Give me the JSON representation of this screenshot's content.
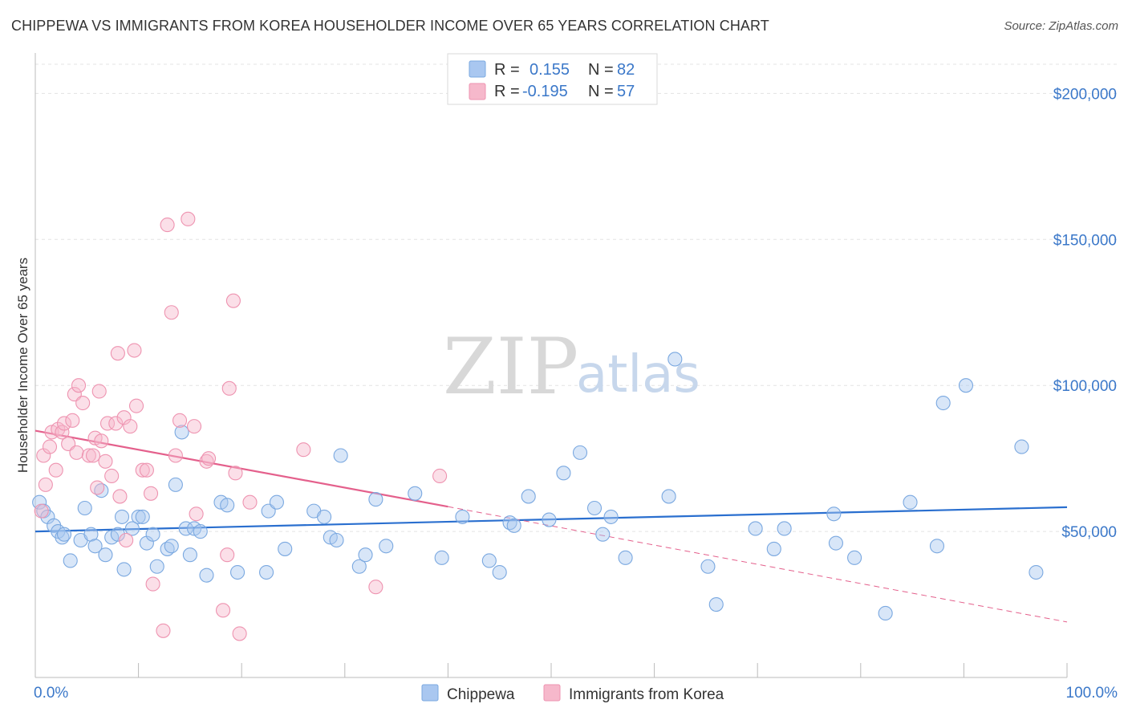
{
  "header": {
    "title": "CHIPPEWA VS IMMIGRANTS FROM KOREA HOUSEHOLDER INCOME OVER 65 YEARS CORRELATION CHART",
    "source": "Source: ZipAtlas.com"
  },
  "watermark": {
    "zip": "ZIP",
    "atlas": "atlas"
  },
  "legend": {
    "rows": [
      {
        "r_label": "R =",
        "r_value": "0.155",
        "n_label": "N =",
        "n_value": "82",
        "color": "#a9c7f0"
      },
      {
        "r_label": "R =",
        "r_value": "-0.195",
        "n_label": "N =",
        "n_value": "57",
        "color": "#f6b8cb"
      }
    ]
  },
  "bottom_legend": [
    {
      "label": "Chippewa",
      "color": "#a9c7f0"
    },
    {
      "label": "Immigrants from Korea",
      "color": "#f6b8cb"
    }
  ],
  "chart_data": {
    "type": "scatter",
    "title": "CHIPPEWA VS IMMIGRANTS FROM KOREA HOUSEHOLDER INCOME OVER 65 YEARS CORRELATION CHART",
    "xlabel": "",
    "ylabel": "Householder Income Over 65 years",
    "xlim": [
      0,
      100
    ],
    "ylim": [
      0,
      210000
    ],
    "x_tick_labels": [
      "0.0%",
      "100.0%"
    ],
    "y_ticks": [
      50000,
      100000,
      150000,
      200000
    ],
    "y_tick_labels": [
      "$50,000",
      "$100,000",
      "$150,000",
      "$200,000"
    ],
    "grid": true,
    "legend_position": "top-center",
    "series": [
      {
        "name": "Chippewa",
        "color": "#a9c7f0",
        "stroke": "#7aa8e0",
        "trend": {
          "x": [
            0,
            100
          ],
          "y": [
            50000,
            58300
          ],
          "color": "#2a6fcf"
        },
        "points": [
          [
            0.4,
            60000
          ],
          [
            0.8,
            57000
          ],
          [
            1.2,
            55000
          ],
          [
            1.8,
            52000
          ],
          [
            2.2,
            50000
          ],
          [
            2.6,
            48000
          ],
          [
            2.8,
            49000
          ],
          [
            3.4,
            40000
          ],
          [
            4.4,
            47000
          ],
          [
            4.8,
            58000
          ],
          [
            5.4,
            49000
          ],
          [
            5.8,
            45000
          ],
          [
            6.4,
            64000
          ],
          [
            6.8,
            42000
          ],
          [
            7.4,
            48000
          ],
          [
            8.0,
            49000
          ],
          [
            8.4,
            55000
          ],
          [
            8.6,
            37000
          ],
          [
            9.4,
            51000
          ],
          [
            10.0,
            55000
          ],
          [
            10.4,
            55000
          ],
          [
            10.8,
            46000
          ],
          [
            11.4,
            49000
          ],
          [
            11.8,
            38000
          ],
          [
            12.8,
            44000
          ],
          [
            13.2,
            45000
          ],
          [
            13.6,
            66000
          ],
          [
            14.2,
            84000
          ],
          [
            14.6,
            51000
          ],
          [
            15.0,
            42000
          ],
          [
            15.4,
            51000
          ],
          [
            16.0,
            50000
          ],
          [
            16.6,
            35000
          ],
          [
            18.0,
            60000
          ],
          [
            18.6,
            59000
          ],
          [
            19.6,
            36000
          ],
          [
            22.4,
            36000
          ],
          [
            22.6,
            57000
          ],
          [
            23.4,
            60000
          ],
          [
            24.2,
            44000
          ],
          [
            27.0,
            57000
          ],
          [
            28.0,
            55000
          ],
          [
            28.6,
            48000
          ],
          [
            29.2,
            47000
          ],
          [
            29.6,
            76000
          ],
          [
            31.4,
            38000
          ],
          [
            32.0,
            42000
          ],
          [
            33.0,
            61000
          ],
          [
            34.0,
            45000
          ],
          [
            36.8,
            63000
          ],
          [
            39.4,
            41000
          ],
          [
            41.4,
            55000
          ],
          [
            44.0,
            40000
          ],
          [
            45.0,
            36000
          ],
          [
            46.0,
            53000
          ],
          [
            46.4,
            52000
          ],
          [
            47.8,
            62000
          ],
          [
            49.8,
            54000
          ],
          [
            51.2,
            70000
          ],
          [
            52.8,
            77000
          ],
          [
            54.2,
            58000
          ],
          [
            55.0,
            49000
          ],
          [
            55.8,
            55000
          ],
          [
            57.2,
            41000
          ],
          [
            61.4,
            62000
          ],
          [
            62.0,
            109000
          ],
          [
            65.2,
            38000
          ],
          [
            66.0,
            25000
          ],
          [
            69.8,
            51000
          ],
          [
            71.6,
            44000
          ],
          [
            72.6,
            51000
          ],
          [
            77.4,
            56000
          ],
          [
            77.6,
            46000
          ],
          [
            79.4,
            41000
          ],
          [
            82.4,
            22000
          ],
          [
            84.8,
            60000
          ],
          [
            87.4,
            45000
          ],
          [
            88.0,
            94000
          ],
          [
            90.2,
            100000
          ],
          [
            95.6,
            79000
          ],
          [
            97.0,
            36000
          ]
        ]
      },
      {
        "name": "Immigrants from Korea",
        "color": "#f6b8cb",
        "stroke": "#ee93b0",
        "trend": {
          "x": [
            0,
            40
          ],
          "y": [
            84500,
            58500
          ],
          "color": "#e4608c",
          "dashed_to": [
            100,
            19000
          ]
        },
        "points": [
          [
            0.6,
            57000
          ],
          [
            0.8,
            76000
          ],
          [
            1.0,
            66000
          ],
          [
            1.4,
            79000
          ],
          [
            1.6,
            84000
          ],
          [
            2.0,
            71000
          ],
          [
            2.2,
            85000
          ],
          [
            2.6,
            84000
          ],
          [
            2.8,
            87000
          ],
          [
            3.2,
            80000
          ],
          [
            3.6,
            88000
          ],
          [
            3.8,
            97000
          ],
          [
            4.0,
            77000
          ],
          [
            4.2,
            100000
          ],
          [
            4.6,
            94000
          ],
          [
            5.2,
            76000
          ],
          [
            5.6,
            76000
          ],
          [
            5.8,
            82000
          ],
          [
            6.0,
            65000
          ],
          [
            6.2,
            98000
          ],
          [
            6.4,
            81000
          ],
          [
            6.8,
            74000
          ],
          [
            7.0,
            87000
          ],
          [
            7.4,
            69000
          ],
          [
            7.8,
            87000
          ],
          [
            8.0,
            111000
          ],
          [
            8.2,
            62000
          ],
          [
            8.6,
            89000
          ],
          [
            8.8,
            47000
          ],
          [
            9.2,
            86000
          ],
          [
            9.6,
            112000
          ],
          [
            9.8,
            93000
          ],
          [
            10.4,
            71000
          ],
          [
            10.8,
            71000
          ],
          [
            11.2,
            63000
          ],
          [
            11.4,
            32000
          ],
          [
            12.4,
            16000
          ],
          [
            12.8,
            155000
          ],
          [
            13.2,
            125000
          ],
          [
            13.6,
            76000
          ],
          [
            14.0,
            88000
          ],
          [
            14.8,
            157000
          ],
          [
            15.4,
            86000
          ],
          [
            15.6,
            56000
          ],
          [
            16.6,
            74000
          ],
          [
            16.8,
            75000
          ],
          [
            18.2,
            23000
          ],
          [
            18.6,
            42000
          ],
          [
            18.8,
            99000
          ],
          [
            19.2,
            129000
          ],
          [
            19.4,
            70000
          ],
          [
            19.8,
            15000
          ],
          [
            20.8,
            60000
          ],
          [
            26.0,
            78000
          ],
          [
            33.0,
            31000
          ],
          [
            39.2,
            69000
          ]
        ]
      }
    ]
  }
}
